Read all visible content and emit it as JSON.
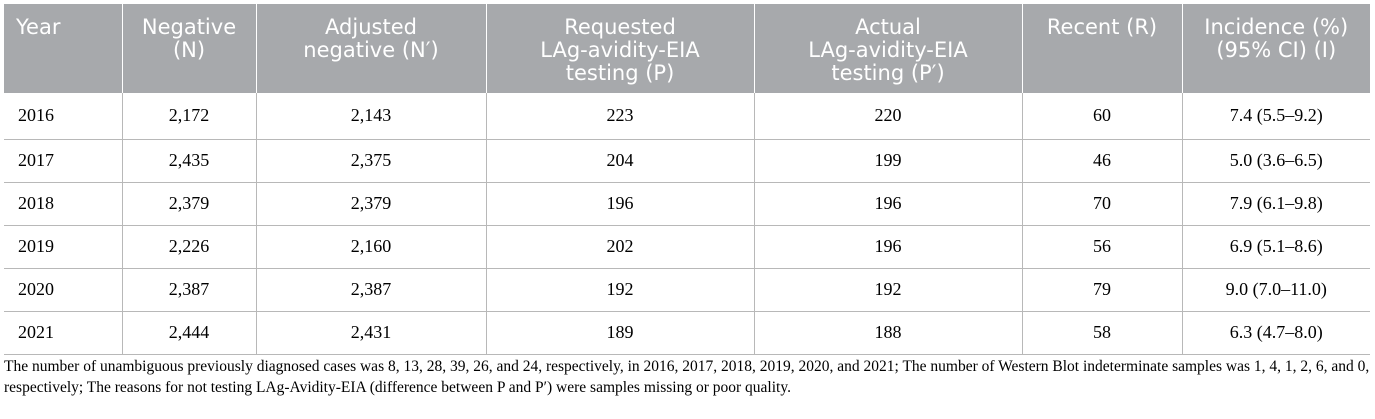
{
  "table": {
    "headers": [
      "Year",
      "Negative\n(N)",
      "Adjusted\nnegative (N′)",
      "Requested\nLAg-avidity-EIA\ntesting (P)",
      "Actual\nLAg-avidity-EIA\ntesting (P′)",
      "Recent (R)",
      "Incidence (%)\n(95% CI) (I)"
    ],
    "rows": [
      [
        "2016",
        "2,172",
        "2,143",
        "223",
        "220",
        "60",
        "7.4 (5.5–9.2)"
      ],
      [
        "2017",
        "2,435",
        "2,375",
        "204",
        "199",
        "46",
        "5.0 (3.6–6.5)"
      ],
      [
        "2018",
        "2,379",
        "2,379",
        "196",
        "196",
        "70",
        "7.9 (6.1–9.8)"
      ],
      [
        "2019",
        "2,226",
        "2,160",
        "202",
        "196",
        "56",
        "6.9 (5.1–8.6)"
      ],
      [
        "2020",
        "2,387",
        "2,387",
        "192",
        "192",
        "79",
        "9.0 (7.0–11.0)"
      ],
      [
        "2021",
        "2,444",
        "2,431",
        "189",
        "188",
        "58",
        "6.3 (4.7–8.0)"
      ]
    ]
  },
  "footnote": "The number of unambiguous previously diagnosed cases was 8, 13, 28, 39, 26, and 24, respectively, in 2016, 2017, 2018, 2019, 2020, and 2021; The number of Western Blot indeterminate samples was 1, 4, 1, 2, 6, and 0, respectively; The reasons for not testing LAg-Avidity-EIA (difference between P and P′) were samples missing or poor quality.",
  "colors": {
    "header_bg": "#a7a9ac",
    "header_text": "#ffffff",
    "rule": "#b8b8b8"
  }
}
